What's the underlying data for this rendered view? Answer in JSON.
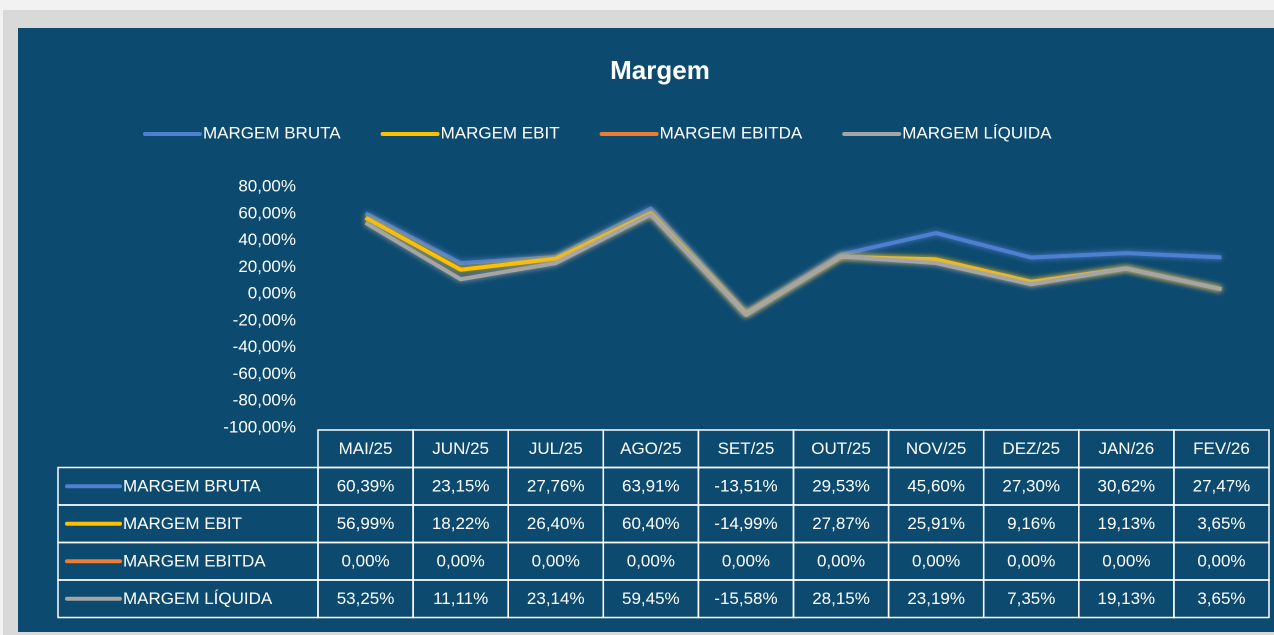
{
  "chart_data": {
    "type": "line",
    "title": "Margem",
    "categories": [
      "MAI/25",
      "JUN/25",
      "JUL/25",
      "AGO/25",
      "SET/25",
      "OUT/25",
      "NOV/25",
      "DEZ/25",
      "JAN/26",
      "FEV/26"
    ],
    "series": [
      {
        "name": "MARGEM BRUTA",
        "color": "#4f7fd0",
        "values": [
          60.39,
          23.15,
          27.76,
          63.91,
          -13.51,
          29.53,
          45.6,
          27.3,
          30.62,
          27.47
        ],
        "value_labels": [
          "60,39%",
          "23,15%",
          "27,76%",
          "63,91%",
          "-13,51%",
          "29,53%",
          "45,60%",
          "27,30%",
          "30,62%",
          "27,47%"
        ]
      },
      {
        "name": "MARGEM EBIT",
        "color": "#ffc000",
        "values": [
          56.99,
          18.22,
          26.4,
          60.4,
          -14.99,
          27.87,
          25.91,
          9.16,
          19.13,
          3.65
        ],
        "value_labels": [
          "56,99%",
          "18,22%",
          "26,40%",
          "60,40%",
          "-14,99%",
          "27,87%",
          "25,91%",
          "9,16%",
          "19,13%",
          "3,65%"
        ]
      },
      {
        "name": "MARGEM EBITDA",
        "color": "#ed7d31",
        "values": [
          0,
          0,
          0,
          0,
          0,
          0,
          0,
          0,
          0,
          0
        ],
        "value_labels": [
          "0,00%",
          "0,00%",
          "0,00%",
          "0,00%",
          "0,00%",
          "0,00%",
          "0,00%",
          "0,00%",
          "0,00%",
          "0,00%"
        ]
      },
      {
        "name": "MARGEM LÍQUIDA",
        "color": "#a5a5a5",
        "values": [
          53.25,
          11.11,
          23.14,
          59.45,
          -15.58,
          28.15,
          23.19,
          7.35,
          19.13,
          3.65
        ],
        "value_labels": [
          "53,25%",
          "11,11%",
          "23,14%",
          "59,45%",
          "-15,58%",
          "28,15%",
          "23,19%",
          "7,35%",
          "19,13%",
          "3,65%"
        ]
      }
    ],
    "ylim": [
      -100,
      80
    ],
    "yticks": [
      {
        "value": 80,
        "label": "80,00%"
      },
      {
        "value": 60,
        "label": "60,00%"
      },
      {
        "value": 40,
        "label": "40,00%"
      },
      {
        "value": 20,
        "label": "20,00%"
      },
      {
        "value": 0,
        "label": "0,00%"
      },
      {
        "value": -20,
        "label": "-20,00%"
      },
      {
        "value": -40,
        "label": "-40,00%"
      },
      {
        "value": -60,
        "label": "-60,00%"
      },
      {
        "value": -80,
        "label": "-80,00%"
      },
      {
        "value": -100,
        "label": "-100,00%"
      }
    ],
    "legend": "top",
    "grid": false
  }
}
